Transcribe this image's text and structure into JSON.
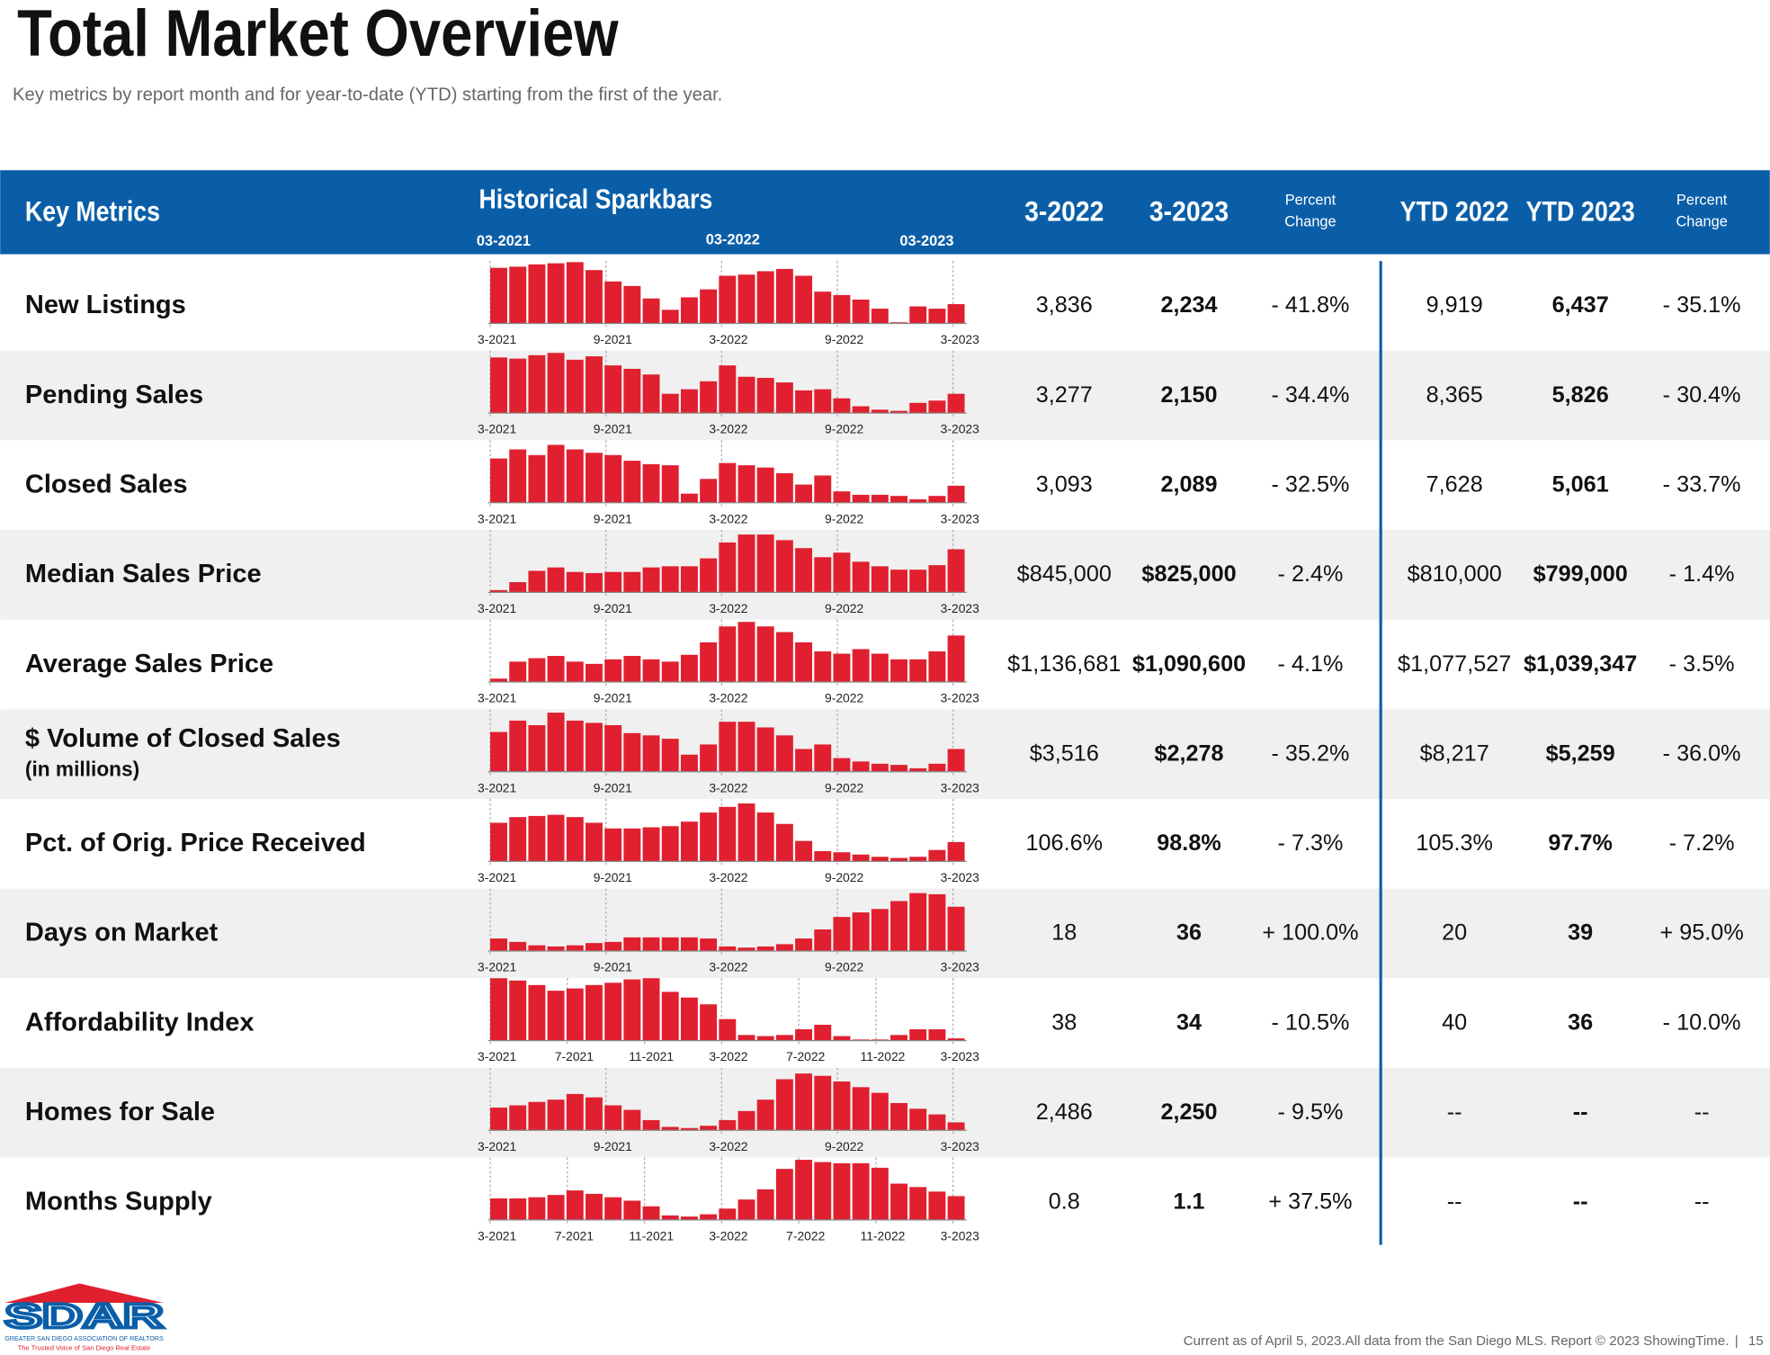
{
  "header": {
    "title": "Total Market Overview",
    "subtitle": "Key metrics by report month and for year-to-date (YTD) starting from the first of the year."
  },
  "table": {
    "columns": {
      "metric": "Key Metrics",
      "sparkbars": "Historical Sparkbars",
      "spark_ticks": [
        "03-2021",
        "03-2022",
        "03-2023"
      ],
      "m2022": "3-2022",
      "m2023": "3-2023",
      "pct": [
        "Percent",
        "Change"
      ],
      "ytd2022": "YTD 2022",
      "ytd2023": "YTD 2023",
      "ytd_pct": [
        "Percent",
        "Change"
      ]
    },
    "rows": [
      {
        "label": "New Listings",
        "spark": {
          "tick_labels": [
            "3-2021",
            "9-2021",
            "3-2022",
            "9-2022",
            "3-2023"
          ],
          "values": [
            49,
            50,
            52,
            53,
            54,
            47,
            37,
            33,
            22,
            12,
            23,
            30,
            42,
            43,
            46,
            48,
            42,
            28,
            25,
            21,
            13,
            1,
            15,
            13,
            17
          ]
        },
        "cells": [
          "3,836",
          "2,234",
          "- 41.8%",
          "9,919",
          "6,437",
          "- 35.1%"
        ]
      },
      {
        "label": "Pending Sales",
        "spark": {
          "tick_labels": [
            "3-2021",
            "9-2021",
            "3-2022",
            "9-2022",
            "3-2023"
          ],
          "values": [
            49,
            48,
            51,
            53,
            47,
            50,
            42,
            39,
            34,
            17,
            21,
            28,
            42,
            32,
            31,
            27,
            20,
            21,
            13,
            6,
            3,
            2,
            9,
            11,
            17
          ]
        },
        "cells": [
          "3,277",
          "2,150",
          "- 34.4%",
          "8,365",
          "5,826",
          "- 30.4%"
        ]
      },
      {
        "label": "Closed Sales",
        "spark": {
          "tick_labels": [
            "3-2021",
            "9-2021",
            "3-2022",
            "9-2022",
            "3-2023"
          ],
          "values": [
            39,
            47,
            42,
            51,
            47,
            44,
            42,
            37,
            34,
            33,
            8,
            21,
            35,
            33,
            31,
            26,
            16,
            24,
            10,
            7,
            7,
            6,
            3,
            6,
            15
          ]
        },
        "cells": [
          "3,093",
          "2,089",
          "- 32.5%",
          "7,628",
          "5,061",
          "- 33.7%"
        ]
      },
      {
        "label": "Median Sales Price",
        "spark": {
          "tick_labels": [
            "3-2021",
            "9-2021",
            "3-2022",
            "9-2022",
            "3-2023"
          ],
          "values": [
            2,
            9,
            19,
            22,
            18,
            17,
            18,
            18,
            22,
            23,
            23,
            30,
            44,
            51,
            51,
            46,
            39,
            31,
            35,
            27,
            23,
            20,
            20,
            24,
            38
          ]
        },
        "cells": [
          "$845,000",
          "$825,000",
          "- 2.4%",
          "$810,000",
          "$799,000",
          "- 1.4%"
        ]
      },
      {
        "label": "Average Sales Price",
        "spark": {
          "tick_labels": [
            "3-2021",
            "9-2021",
            "3-2022",
            "9-2022",
            "3-2023"
          ],
          "values": [
            3,
            18,
            21,
            23,
            18,
            16,
            20,
            23,
            20,
            18,
            24,
            35,
            49,
            53,
            49,
            44,
            35,
            27,
            25,
            29,
            25,
            20,
            20,
            27,
            41
          ]
        },
        "cells": [
          "$1,136,681",
          "$1,090,600",
          "- 4.1%",
          "$1,077,527",
          "$1,039,347",
          "- 3.5%"
        ]
      },
      {
        "label": "$ Volume of Closed Sales",
        "note": "(in millions)",
        "spark": {
          "tick_labels": [
            "3-2021",
            "9-2021",
            "3-2022",
            "9-2022",
            "3-2023"
          ],
          "values": [
            35,
            45,
            41,
            52,
            45,
            43,
            41,
            34,
            32,
            29,
            15,
            24,
            44,
            44,
            39,
            32,
            20,
            24,
            12,
            9,
            7,
            6,
            3,
            7,
            20
          ]
        },
        "cells": [
          "$3,516",
          "$2,278",
          "- 35.2%",
          "$8,217",
          "$5,259",
          "- 36.0%"
        ]
      },
      {
        "label": "Pct. of Orig. Price Received",
        "spark": {
          "tick_labels": [
            "3-2021",
            "9-2021",
            "3-2022",
            "9-2022",
            "3-2023"
          ],
          "values": [
            34,
            39,
            40,
            41,
            39,
            34,
            29,
            29,
            30,
            31,
            35,
            43,
            48,
            51,
            43,
            33,
            18,
            9,
            8,
            6,
            4,
            3,
            4,
            10,
            17
          ]
        },
        "cells": [
          "106.6%",
          "98.8%",
          "- 7.3%",
          "105.3%",
          "97.7%",
          "- 7.2%"
        ]
      },
      {
        "label": "Days on Market",
        "spark": {
          "tick_labels": [
            "3-2021",
            "9-2021",
            "3-2022",
            "9-2022",
            "3-2023"
          ],
          "values": [
            11,
            8,
            5,
            4,
            5,
            7,
            8,
            12,
            12,
            12,
            12,
            11,
            4,
            3,
            4,
            6,
            11,
            19,
            30,
            34,
            37,
            44,
            51,
            50,
            39
          ]
        },
        "cells": [
          "18",
          "36",
          "+ 100.0%",
          "20",
          "39",
          "+ 95.0%"
        ]
      },
      {
        "label": "Affordability Index",
        "spark": {
          "tick_labels": [
            "3-2021",
            "7-2021",
            "11-2021",
            "3-2022",
            "7-2022",
            "11-2022",
            "3-2023"
          ],
          "values": [
            55,
            53,
            49,
            44,
            46,
            49,
            51,
            54,
            55,
            43,
            38,
            32,
            19,
            5,
            4,
            5,
            10,
            14,
            4,
            1,
            1,
            5,
            10,
            10,
            2
          ]
        },
        "cells": [
          "38",
          "34",
          "- 10.5%",
          "40",
          "36",
          "- 10.0%"
        ]
      },
      {
        "label": "Homes for Sale",
        "spark": {
          "tick_labels": [
            "3-2021",
            "9-2021",
            "3-2022",
            "9-2022",
            "3-2023"
          ],
          "values": [
            20,
            22,
            25,
            27,
            32,
            29,
            22,
            18,
            9,
            3,
            2,
            4,
            9,
            17,
            27,
            45,
            50,
            48,
            43,
            38,
            33,
            24,
            19,
            14,
            7
          ]
        },
        "cells": [
          "2,486",
          "2,250",
          "- 9.5%",
          "--",
          "--",
          "--"
        ]
      },
      {
        "label": "Months Supply",
        "spark": {
          "tick_labels": [
            "3-2021",
            "7-2021",
            "11-2021",
            "3-2022",
            "7-2022",
            "11-2022",
            "3-2023"
          ],
          "values": [
            19,
            19,
            20,
            22,
            26,
            23,
            20,
            17,
            12,
            4,
            3,
            5,
            10,
            18,
            27,
            45,
            53,
            51,
            50,
            50,
            46,
            32,
            29,
            25,
            21
          ]
        },
        "cells": [
          "0.8",
          "1.1",
          "+ 37.5%",
          "--",
          "--",
          "--"
        ]
      }
    ]
  },
  "footer": {
    "logo": {
      "name": "SDAR",
      "org": "GREATER SAN DIEGO ASSOCIATION OF REALTORS",
      "tagline": "The Trusted Voice of San Diego Real Estate"
    },
    "note": "Current as of April 5, 2023.All data from the San Diego MLS. Report © 2023 ShowingTime.",
    "page": "15"
  }
}
